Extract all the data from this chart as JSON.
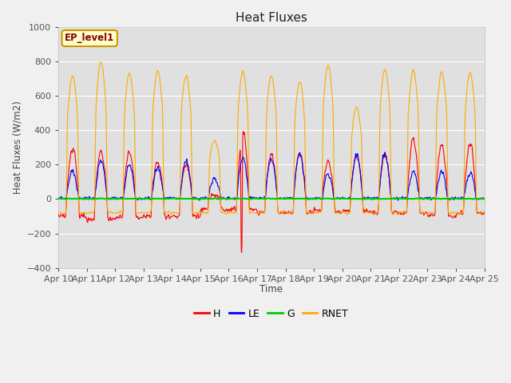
{
  "title": "Heat Fluxes",
  "ylabel": "Heat Fluxes (W/m2)",
  "xlabel": "Time",
  "ylim": [
    -400,
    1000
  ],
  "background_color": "#f0f0f0",
  "plot_bg_color": "#e0e0e0",
  "legend_label": "EP_level1",
  "x_tick_labels": [
    "Apr 10",
    "Apr 11",
    "Apr 12",
    "Apr 13",
    "Apr 14",
    "Apr 15",
    "Apr 16",
    "Apr 17",
    "Apr 18",
    "Apr 19",
    "Apr 20",
    "Apr 21",
    "Apr 22",
    "Apr 23",
    "Apr 24",
    "Apr 25"
  ],
  "colors": {
    "H": "#ff0000",
    "LE": "#0000ff",
    "G": "#00cc00",
    "RNET": "#ffaa00"
  },
  "line_width": 0.8,
  "yticks": [
    -400,
    -200,
    0,
    200,
    400,
    600,
    800,
    1000
  ],
  "figsize": [
    6.4,
    4.8
  ],
  "dpi": 100
}
